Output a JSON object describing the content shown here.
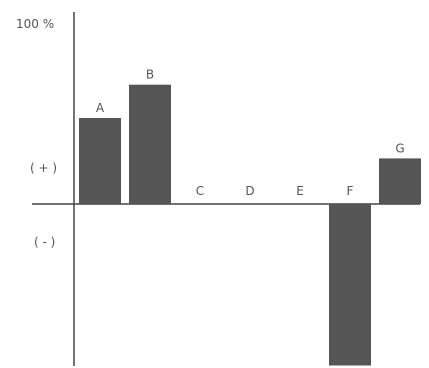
{
  "chart_data": {
    "type": "bar",
    "categories": [
      "A",
      "B",
      "C",
      "D",
      "E",
      "F",
      "G"
    ],
    "values": [
      49,
      68,
      0,
      0,
      0,
      -92,
      26
    ],
    "ylim": [
      -92,
      100
    ],
    "top_label": "100 %",
    "positive_label": "( + )",
    "negative_label": "( - )",
    "grid": false,
    "legend": "none",
    "bar_color": "#555555",
    "axis_color": "#444444"
  }
}
